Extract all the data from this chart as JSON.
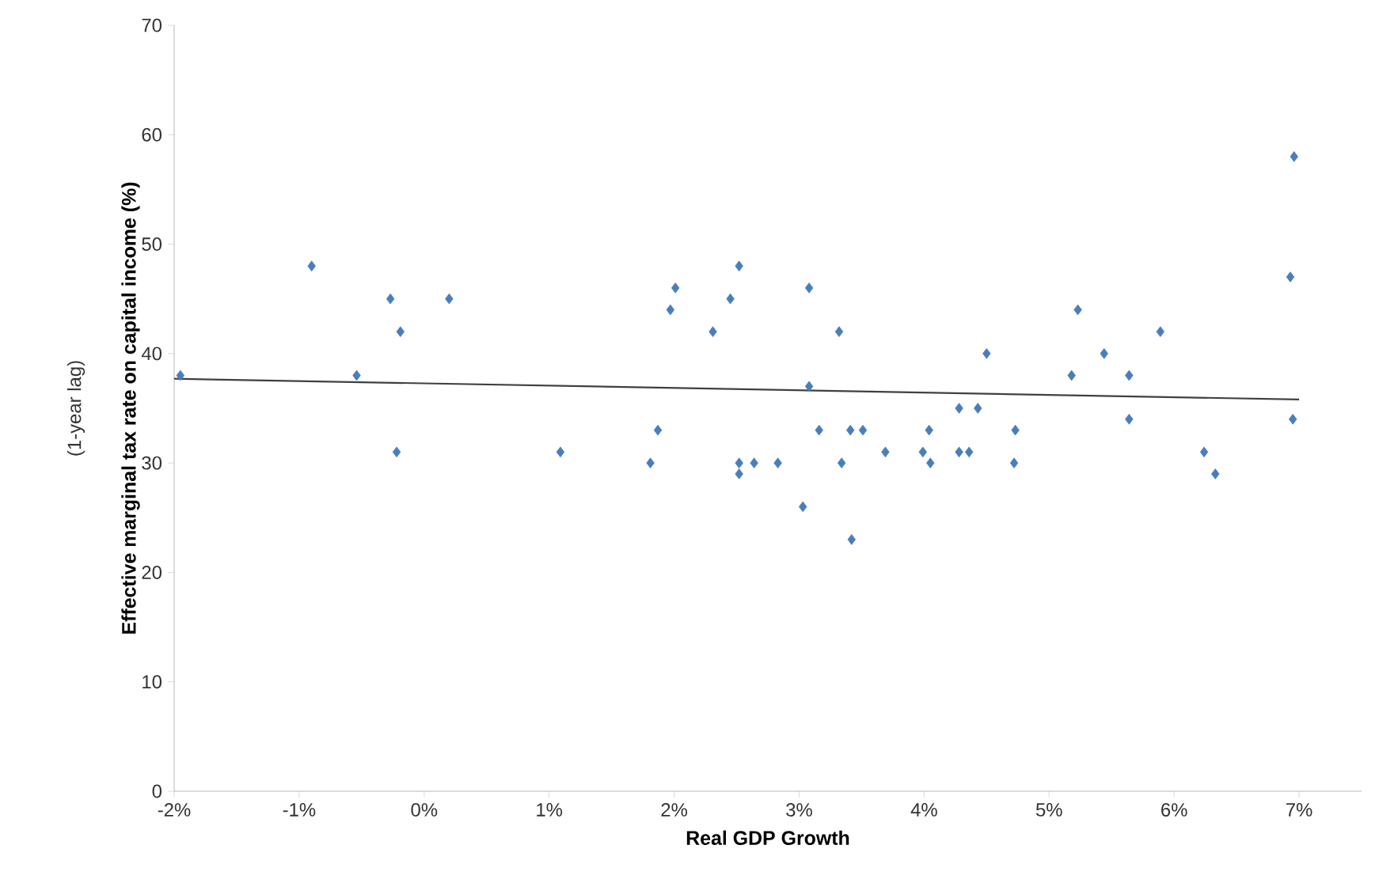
{
  "chart_data": {
    "type": "scatter",
    "xlabel": "Real GDP Growth",
    "ylabel": "Effective marginal tax rate  on capital income (%)",
    "annotations": [
      "(1-year lag)"
    ],
    "xlim": [
      -2,
      7.5
    ],
    "ylim": [
      0,
      70
    ],
    "xticks": [
      {
        "value": -2,
        "label": "-2%"
      },
      {
        "value": -1,
        "label": "-1%"
      },
      {
        "value": 0,
        "label": "0%"
      },
      {
        "value": 1,
        "label": "1%"
      },
      {
        "value": 2,
        "label": "2%"
      },
      {
        "value": 3,
        "label": "3%"
      },
      {
        "value": 4,
        "label": "4%"
      },
      {
        "value": 5,
        "label": "5%"
      },
      {
        "value": 6,
        "label": "6%"
      },
      {
        "value": 7,
        "label": "7%"
      }
    ],
    "yticks": [
      0,
      10,
      20,
      30,
      40,
      50,
      60,
      70
    ],
    "marker": "diamond",
    "grid": false,
    "series": [
      {
        "color": "#4a7ebb",
        "x": [
          -1.95,
          -0.9,
          -0.27,
          0.2,
          -0.19,
          -0.54,
          -0.22,
          1.09,
          2.52,
          2.01,
          1.97,
          2.45,
          2.31,
          3.08,
          3.32,
          3.08,
          1.87,
          1.81,
          2.52,
          2.52,
          2.64,
          2.83,
          3.16,
          3.41,
          3.51,
          3.34,
          3.69,
          3.03,
          3.42,
          4.04,
          3.99,
          4.05,
          4.28,
          4.43,
          4.28,
          4.36,
          4.73,
          4.72,
          4.5,
          5.23,
          5.44,
          5.18,
          5.64,
          5.64,
          5.89,
          6.24,
          6.33,
          6.96,
          6.93,
          6.95
        ],
        "values": [
          38,
          48,
          45,
          45,
          42,
          38,
          31,
          31,
          48,
          46,
          44,
          45,
          42,
          46,
          42,
          37,
          33,
          30,
          30,
          29,
          30,
          30,
          33,
          33,
          33,
          30,
          31,
          26,
          23,
          33,
          31,
          30,
          35,
          35,
          31,
          31,
          33,
          30,
          40,
          44,
          40,
          38,
          38,
          34,
          42,
          31,
          29,
          58,
          47,
          34
        ]
      },
      {
        "type": "line",
        "color": "#404040",
        "marker": "none",
        "x": [
          -2,
          7
        ],
        "values": [
          37.7,
          35.8
        ]
      }
    ]
  }
}
